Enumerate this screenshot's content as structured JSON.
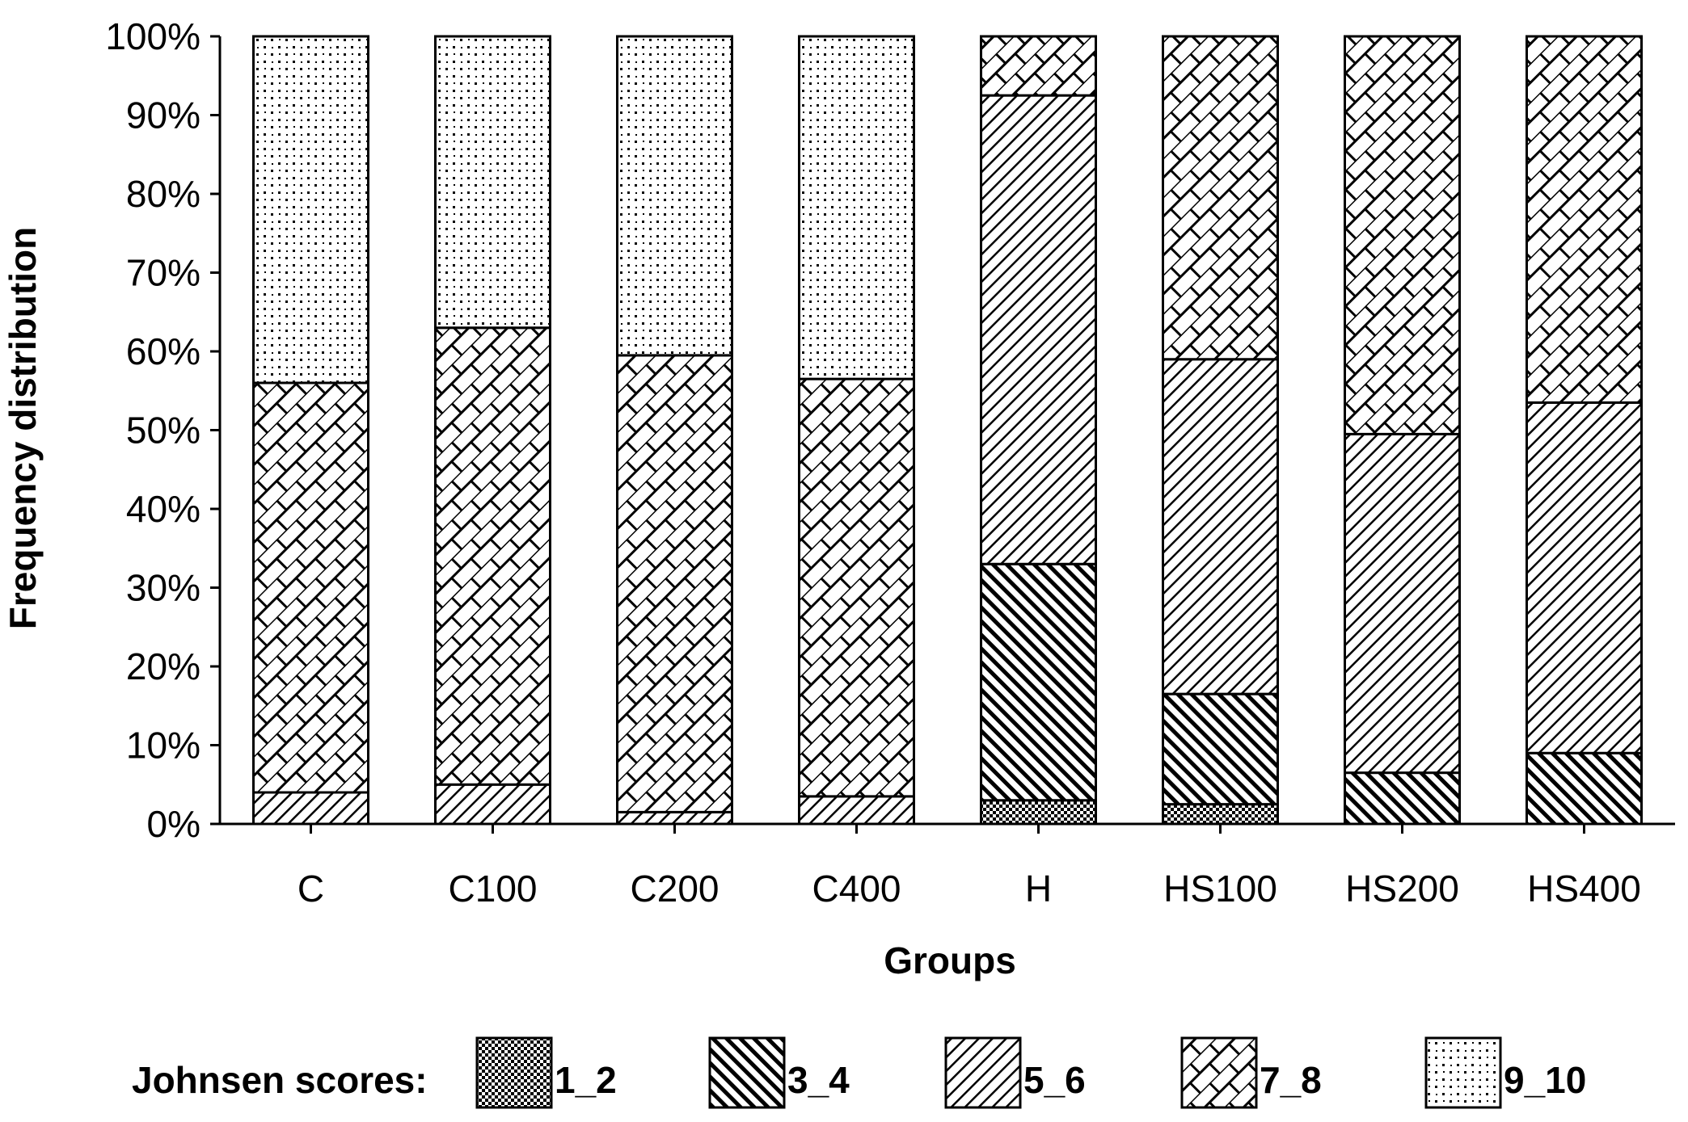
{
  "chart_data": {
    "type": "bar",
    "stacked": true,
    "categories": [
      "C",
      "C100",
      "C200",
      "C400",
      "H",
      "HS100",
      "HS200",
      "HS400"
    ],
    "series": [
      {
        "name": "1_2",
        "pattern": "dots-dense",
        "values": [
          0.0,
          0.0,
          0.0,
          0.0,
          3.0,
          2.5,
          0.0,
          0.0
        ]
      },
      {
        "name": "3_4",
        "pattern": "diag-dense",
        "values": [
          0.0,
          0.0,
          0.0,
          0.0,
          30.0,
          14.0,
          6.5,
          9.0
        ]
      },
      {
        "name": "5_6",
        "pattern": "backdiag",
        "values": [
          4.0,
          5.0,
          1.5,
          3.5,
          59.5,
          42.5,
          43.0,
          44.5
        ]
      },
      {
        "name": "7_8",
        "pattern": "brick",
        "values": [
          52.0,
          58.0,
          58.0,
          53.0,
          7.5,
          41.0,
          50.5,
          46.5
        ]
      },
      {
        "name": "9_10",
        "pattern": "dots-sparse",
        "values": [
          44.0,
          37.0,
          40.5,
          43.5,
          0.0,
          0.0,
          0.0,
          0.0
        ]
      }
    ],
    "y_ticks": [
      "0%",
      "10%",
      "20%",
      "30%",
      "40%",
      "50%",
      "60%",
      "70%",
      "80%",
      "90%",
      "100%"
    ],
    "ylim": [
      0,
      100
    ],
    "xlabel": "Groups",
    "ylabel": "Frequency distribution",
    "legend_title": "Johnsen scores:",
    "legend_position": "bottom",
    "grid": false
  }
}
